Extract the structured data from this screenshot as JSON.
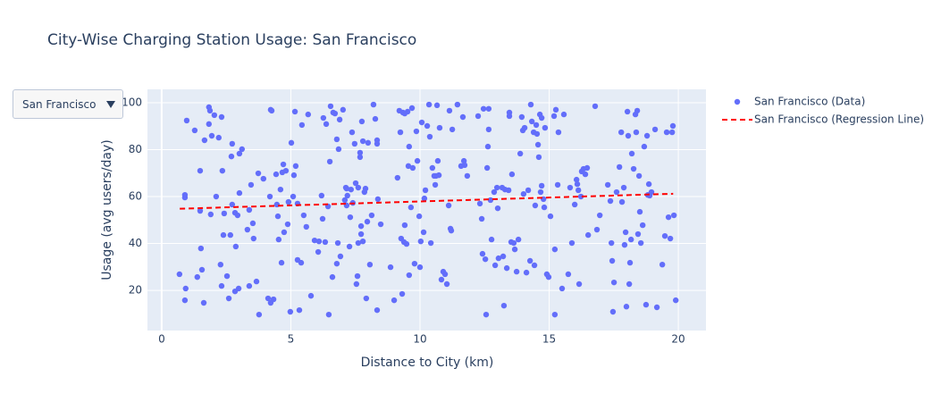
{
  "chart_data": {
    "type": "scatter",
    "title": "City-Wise Charging Station Usage: San Francisco",
    "dropdown": {
      "selected": "San Francisco"
    },
    "x_label": "Distance to City (km)",
    "y_label": "Usage (avg users/day)",
    "xlim": [
      -0.55,
      21.07
    ],
    "ylim": [
      2.9,
      105.7
    ],
    "xticks": [
      0,
      5,
      10,
      15,
      20
    ],
    "yticks": [
      20,
      40,
      60,
      80,
      100
    ],
    "grid": true,
    "legend": "top-right outside",
    "background": "#e5ecf6",
    "series": [
      {
        "name": "San Francisco (Data)",
        "color": "#636efa",
        "mode": "markers",
        "x": [
          0.69,
          0.9,
          0.9,
          0.97,
          0.9,
          0.93,
          1.28,
          1.38,
          1.49,
          1.49,
          1.52,
          1.56,
          1.63,
          1.66,
          1.83,
          1.87,
          1.94,
          1.9,
          1.83,
          2.04,
          2.11,
          2.21,
          2.32,
          2.28,
          2.32,
          2.35,
          2.39,
          2.42,
          2.53,
          2.6,
          2.66,
          2.7,
          2.73,
          2.73,
          2.84,
          2.84,
          2.87,
          2.94,
          2.98,
          3.01,
          3.01,
          3.11,
          3.32,
          3.39,
          3.39,
          3.46,
          3.53,
          3.56,
          3.67,
          3.74,
          3.77,
          3.94,
          4.12,
          4.19,
          4.22,
          4.22,
          4.26,
          4.33,
          4.43,
          4.46,
          4.5,
          4.53,
          4.6,
          4.64,
          4.67,
          4.71,
          4.74,
          4.81,
          4.91,
          4.88,
          4.98,
          5.02,
          5.09,
          5.12,
          5.16,
          5.19,
          5.26,
          5.26,
          5.33,
          5.4,
          5.43,
          5.5,
          5.6,
          5.67,
          5.78,
          5.92,
          6.06,
          6.09,
          6.19,
          6.23,
          6.26,
          6.33,
          6.37,
          6.44,
          6.51,
          6.54,
          6.47,
          6.61,
          6.64,
          6.71,
          6.78,
          6.78,
          6.82,
          6.85,
          6.89,
          6.92,
          7.02,
          7.09,
          7.13,
          7.16,
          7.16,
          7.19,
          7.27,
          7.3,
          7.33,
          7.37,
          7.4,
          7.47,
          7.51,
          7.54,
          7.58,
          7.61,
          7.61,
          7.68,
          7.68,
          7.72,
          7.72,
          7.75,
          7.79,
          7.79,
          7.85,
          7.89,
          7.92,
          7.96,
          7.99,
          8.06,
          8.13,
          8.2,
          8.27,
          8.34,
          8.34,
          8.34,
          8.37,
          8.48,
          8.86,
          9,
          9.13,
          9.2,
          9.24,
          9.27,
          9.31,
          9.34,
          9.38,
          9.41,
          9.41,
          9.48,
          9.52,
          9.55,
          9.58,
          9.58,
          9.65,
          9.69,
          9.72,
          9.79,
          9.86,
          9.9,
          9.97,
          10,
          10.03,
          10.07,
          10.14,
          10.17,
          10.21,
          10.28,
          10.35,
          10.38,
          10.42,
          10.48,
          10.55,
          10.59,
          10.62,
          10.66,
          10.69,
          10.73,
          10.76,
          10.83,
          10.9,
          10.97,
          11.04,
          11.11,
          11.14,
          11.18,
          11.21,
          11.25,
          11.45,
          11.59,
          11.7,
          11.73,
          11.66,
          11.83,
          12.25,
          12.32,
          12.39,
          12.42,
          12.46,
          12.53,
          12.56,
          12.6,
          12.63,
          12.66,
          12.66,
          12.73,
          12.77,
          12.87,
          12.91,
          12.98,
          13.01,
          13.04,
          13.18,
          13.22,
          13.25,
          13.29,
          13.36,
          13.43,
          13.46,
          13.46,
          13.53,
          13.56,
          13.63,
          13.67,
          13.74,
          13.81,
          13.88,
          13.94,
          13.98,
          14.01,
          14.05,
          14.12,
          14.19,
          14.26,
          14.29,
          14.33,
          14.4,
          14.43,
          14.46,
          14.5,
          14.53,
          14.57,
          14.6,
          14.64,
          14.67,
          14.71,
          14.71,
          14.78,
          14.81,
          14.84,
          14.91,
          14.98,
          15.05,
          15.19,
          15.22,
          15.22,
          15.26,
          15.33,
          15.36,
          15.5,
          15.57,
          15.74,
          15.81,
          15.88,
          15.99,
          16.06,
          16.09,
          16.13,
          16.16,
          16.23,
          16.26,
          16.33,
          16.4,
          16.47,
          16.51,
          16.78,
          16.85,
          16.96,
          17.27,
          17.37,
          17.41,
          17.44,
          17.47,
          17.51,
          17.61,
          17.72,
          17.79,
          17.82,
          17.89,
          17.92,
          17.96,
          17.99,
          18.03,
          18.06,
          18.1,
          18.13,
          18.17,
          18.2,
          18.27,
          18.34,
          18.37,
          18.41,
          18.44,
          18.48,
          18.51,
          18.55,
          18.62,
          18.68,
          18.75,
          18.79,
          18.82,
          18.86,
          18.89,
          18.96,
          19.1,
          19.17,
          19.38,
          19.48,
          19.55,
          19.62,
          19.69,
          19.76,
          19.79,
          19.83,
          19.9
        ],
        "values": [
          26.9,
          59.6,
          60.7,
          92.4,
          15.8,
          20.8,
          88.2,
          25.7,
          53.9,
          71,
          37.9,
          28.8,
          14.7,
          84,
          98.1,
          96.6,
          85.9,
          52.4,
          90.9,
          94.7,
          60,
          85.1,
          93.9,
          31,
          21.9,
          71,
          43.6,
          52.8,
          26.1,
          16.6,
          43.6,
          77.1,
          56.6,
          82.5,
          19.6,
          53.1,
          38.7,
          52,
          20.8,
          78.3,
          61.5,
          80.2,
          45.9,
          54.3,
          21.9,
          65,
          48.6,
          42.1,
          23.8,
          69.9,
          9.7,
          67.6,
          16.6,
          60,
          97,
          14.7,
          96.6,
          16.2,
          69.5,
          56.6,
          51.6,
          41.7,
          63,
          31.8,
          70.3,
          73.7,
          44.8,
          71,
          57.7,
          48.2,
          10.9,
          82.9,
          60,
          69.1,
          96.2,
          73,
          57,
          33,
          11.6,
          31.8,
          90.5,
          52,
          47.1,
          95,
          17.7,
          41.3,
          36.4,
          40.9,
          60.4,
          50.5,
          93.5,
          40.6,
          90.9,
          55.8,
          74.9,
          98.5,
          9.7,
          25.7,
          95.8,
          95.4,
          84.4,
          31.4,
          40.2,
          80.2,
          92.8,
          34.5,
          97,
          58.5,
          63.8,
          63.4,
          56.2,
          60.4,
          38.7,
          51.2,
          63,
          87.4,
          57.3,
          82.5,
          65.7,
          22.7,
          26.1,
          40.2,
          63.8,
          78.7,
          76.8,
          44,
          47.4,
          92,
          83.6,
          40.9,
          61.9,
          63.4,
          16.6,
          49.3,
          82.9,
          31,
          52,
          99.2,
          93.1,
          82.5,
          84,
          11.6,
          58.9,
          48.2,
          29.9,
          15.8,
          68,
          96.6,
          87.4,
          42.1,
          18.5,
          95.8,
          40.6,
          47.8,
          95.4,
          39.8,
          96.2,
          73,
          26.5,
          81.3,
          55.4,
          97.7,
          72.2,
          31.4,
          87.8,
          75.2,
          51.6,
          29.9,
          40.9,
          91.6,
          44.8,
          59.2,
          62.7,
          90.1,
          99.2,
          85.5,
          40.2,
          72.2,
          68.8,
          65,
          68.8,
          98.9,
          75.2,
          69.1,
          89.3,
          24.6,
          28,
          26.9,
          22.7,
          56.2,
          96.6,
          46.3,
          45.5,
          88.6,
          99.2,
          73,
          75.2,
          73.4,
          93.9,
          68.8,
          94.3,
          57,
          50.5,
          35.6,
          97.4,
          33.3,
          9.7,
          72.2,
          81.3,
          97.4,
          88.6,
          58.5,
          41.7,
          61.9,
          30.7,
          63.8,
          55,
          33.7,
          63.8,
          34.5,
          13.5,
          63,
          29.5,
          62.7,
          95.8,
          94.3,
          40.6,
          69.5,
          40.2,
          37.5,
          28,
          41.7,
          78.3,
          93.9,
          88.2,
          61.1,
          89.3,
          27.6,
          62.7,
          32.6,
          99.2,
          92,
          87.4,
          30.7,
          56.2,
          90.5,
          86.7,
          82.1,
          76.8,
          95,
          61.9,
          64.6,
          93.5,
          58.9,
          55.4,
          89.3,
          26.9,
          25.7,
          51.6,
          94.3,
          37.5,
          9.7,
          97,
          65,
          87.4,
          20.8,
          95,
          26.9,
          63.8,
          40.2,
          56.6,
          67.2,
          65.3,
          62.7,
          22.7,
          60,
          70.7,
          71.8,
          69.5,
          72.2,
          43.6,
          98.5,
          45.9,
          52,
          65,
          58.1,
          40.2,
          32.6,
          10.9,
          23.4,
          61.9,
          72.6,
          87.4,
          57.7,
          63.8,
          39.4,
          44.8,
          13.1,
          96.2,
          85.9,
          22.7,
          31.8,
          41.7,
          78.3,
          71.8,
          95,
          87.4,
          96.6,
          44,
          68.8,
          53.5,
          40.2,
          47.8,
          81.3,
          13.9,
          85.9,
          60.7,
          65.3,
          60.4,
          61.9,
          88.6,
          12.8,
          31,
          43.2,
          87.4,
          51.2,
          42.1,
          87.4,
          90.1,
          52,
          15.8
        ]
      },
      {
        "name": "San Francisco (Regression Line)",
        "color": "#ff0000",
        "mode": "lines",
        "dash": "dash",
        "x": [
          0.7,
          19.8
        ],
        "values": [
          54.8,
          61.2
        ]
      }
    ]
  }
}
